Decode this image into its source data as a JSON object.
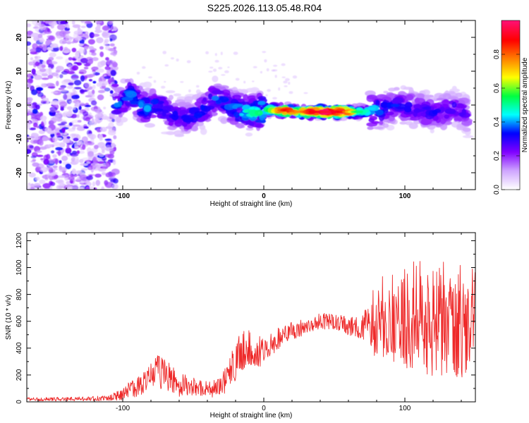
{
  "title": "S225.2026.113.05.48.R04",
  "chart_data": [
    {
      "type": "heatmap",
      "xlabel": "Height of straight line (km)",
      "ylabel": "Frequency (Hz)",
      "xlim": [
        -168,
        150
      ],
      "ylim": [
        -25,
        25
      ],
      "xticks": [
        -100,
        0,
        100
      ],
      "xtick_labels": [
        "-100",
        "0",
        "100"
      ],
      "yticks": [
        -20,
        -10,
        0,
        10,
        20
      ],
      "ytick_labels": [
        "-20",
        "-10",
        "0",
        "10",
        "20"
      ],
      "ridge": {
        "x": [
          -105,
          -95,
          -85,
          -75,
          -65,
          -55,
          -45,
          -35,
          -25,
          -15,
          -5,
          5,
          15,
          25,
          35,
          45,
          55,
          65,
          75,
          85,
          95,
          105,
          115,
          125,
          135,
          145
        ],
        "frequency_hz": [
          0,
          3,
          -1,
          0,
          -3,
          -4,
          -2,
          2,
          0,
          -2,
          -2,
          -1.5,
          -1.5,
          -2,
          -2,
          -2,
          -2,
          -2,
          -2,
          -1,
          0,
          -1,
          -2,
          -2,
          -1,
          -3
        ],
        "amplitude": [
          0.35,
          0.4,
          0.4,
          0.35,
          0.3,
          0.3,
          0.35,
          0.35,
          0.35,
          0.45,
          0.5,
          0.6,
          0.9,
          0.75,
          0.9,
          0.95,
          0.9,
          0.55,
          0.45,
          0.35,
          0.3,
          0.3,
          0.3,
          0.3,
          0.3,
          0.25
        ]
      },
      "noise_region_x": [
        -168,
        -105
      ],
      "colorbar": {
        "label": "Normalized spectral amplitude",
        "range": [
          0,
          1
        ],
        "ticks": [
          0.0,
          0.2,
          0.4,
          0.6,
          0.8
        ],
        "tick_labels": [
          "0.0",
          "0.2",
          "0.4",
          "0.6",
          "0.8"
        ],
        "colors": [
          "#ffffff",
          "#cfa5ff",
          "#8000ff",
          "#0000ff",
          "#00ffff",
          "#00ff40",
          "#ffff00",
          "#ff8000",
          "#ff0000",
          "#ff1070"
        ]
      }
    },
    {
      "type": "line",
      "xlabel": "Height of straight line (km)",
      "ylabel": "SNR (10 * v/v)",
      "xlim": [
        -168,
        150
      ],
      "ylim": [
        0,
        1260
      ],
      "xticks": [
        -100,
        0,
        100
      ],
      "xtick_labels": [
        "-100",
        "0",
        "100"
      ],
      "yticks": [
        0,
        200,
        400,
        600,
        800,
        1000,
        1200
      ],
      "ytick_labels": [
        "0",
        "200",
        "400",
        "600",
        "800",
        "1000",
        "1200"
      ],
      "color": "#ee2a2a",
      "series": [
        {
          "name": "SNR",
          "x": [
            -168,
            -140,
            -110,
            -100,
            -90,
            -80,
            -75,
            -70,
            -60,
            -50,
            -40,
            -30,
            -25,
            -20,
            -15,
            -10,
            -5,
            0,
            5,
            10,
            20,
            30,
            40,
            50,
            60,
            70,
            80,
            90,
            100,
            110,
            120,
            130,
            140,
            150
          ],
          "values": [
            20,
            20,
            25,
            60,
            120,
            180,
            230,
            200,
            130,
            110,
            90,
            110,
            200,
            300,
            380,
            400,
            380,
            360,
            420,
            470,
            530,
            560,
            600,
            600,
            560,
            560,
            600,
            620,
            620,
            620,
            630,
            620,
            600,
            600
          ],
          "spread": [
            12,
            15,
            20,
            45,
            80,
            110,
            130,
            120,
            90,
            70,
            60,
            80,
            120,
            150,
            160,
            140,
            130,
            100,
            90,
            80,
            70,
            60,
            60,
            60,
            70,
            100,
            300,
            380,
            420,
            440,
            440,
            420,
            420,
            400
          ]
        }
      ]
    }
  ]
}
